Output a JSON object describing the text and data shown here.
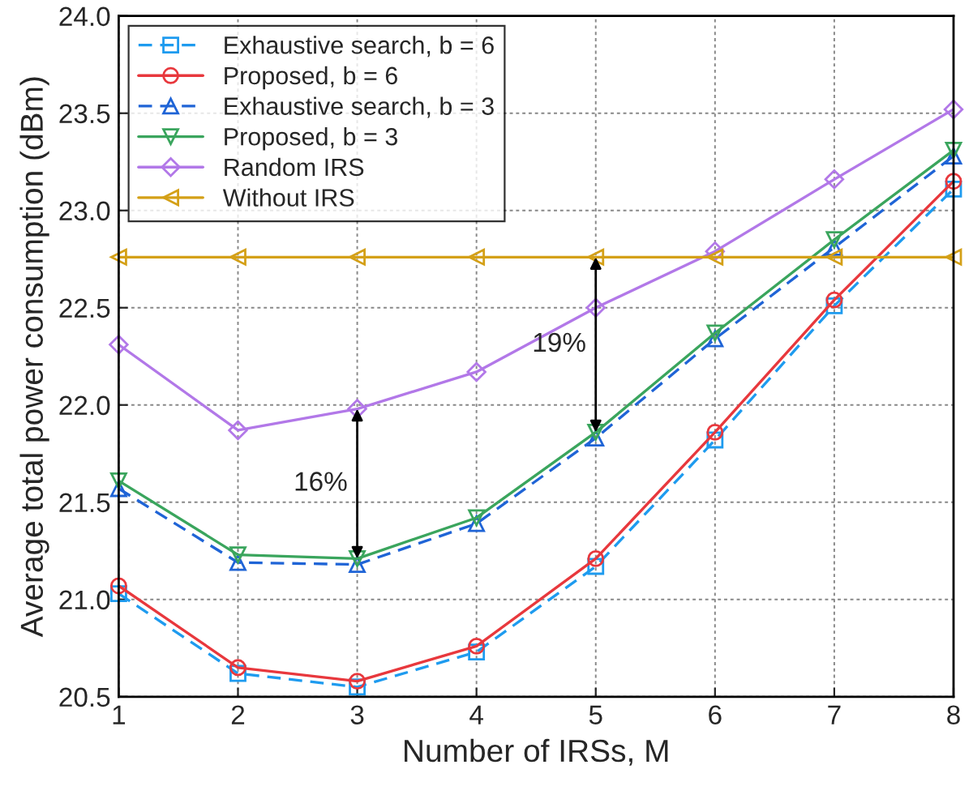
{
  "chart_data": {
    "type": "line",
    "xlabel": "Number of IRSs, M",
    "ylabel": "Average total power consumption (dBm)",
    "x": [
      1,
      2,
      3,
      4,
      5,
      6,
      7,
      8
    ],
    "series": [
      {
        "name": "Exhaustive search, b = 6",
        "color": "#1e9bef",
        "marker": "square",
        "line_style": "dashed",
        "values": [
          21.03,
          20.62,
          20.55,
          20.73,
          21.17,
          21.82,
          22.51,
          23.11
        ]
      },
      {
        "name": "Proposed, b = 6",
        "color": "#e8383d",
        "marker": "circle",
        "line_style": "solid",
        "values": [
          21.07,
          20.65,
          20.58,
          20.76,
          21.21,
          21.86,
          22.54,
          23.15
        ]
      },
      {
        "name": "Exhaustive search, b = 3",
        "color": "#1f64d6",
        "marker": "triangle",
        "line_style": "dashed",
        "values": [
          21.57,
          21.19,
          21.18,
          21.39,
          21.83,
          22.34,
          22.81,
          23.28
        ]
      },
      {
        "name": "Proposed, b = 3",
        "color": "#3aa55d",
        "marker": "triangle_down",
        "line_style": "solid",
        "values": [
          21.61,
          21.23,
          21.21,
          21.42,
          21.86,
          22.37,
          22.85,
          23.31
        ]
      },
      {
        "name": "Random IRS",
        "color": "#b278e8",
        "marker": "diamond",
        "line_style": "solid",
        "values": [
          22.31,
          21.87,
          21.98,
          22.17,
          22.5,
          22.79,
          23.16,
          23.52
        ]
      },
      {
        "name": "Without IRS",
        "color": "#d4a017",
        "marker": "triangle_left",
        "line_style": "solid",
        "values": [
          22.76,
          22.76,
          22.76,
          22.76,
          22.76,
          22.76,
          22.76,
          22.76
        ]
      }
    ],
    "annotations": [
      {
        "text": "16%",
        "x": 3,
        "y": 21.98
      },
      {
        "text": "19%",
        "x": 5,
        "y": 22.76
      }
    ],
    "xlim": [
      1,
      8
    ],
    "xticks": [
      1,
      2,
      3,
      4,
      5,
      6,
      7,
      8
    ],
    "ylim": [
      20.5,
      24.0
    ],
    "yticks": [
      {
        "value": 20.5,
        "label": "20.5"
      },
      {
        "value": 21.0,
        "label": "21.0"
      },
      {
        "value": 21.5,
        "label": "21.5"
      },
      {
        "value": 22.0,
        "label": "22.0"
      },
      {
        "value": 22.5,
        "label": "22.5"
      },
      {
        "value": 23.0,
        "label": "23.0"
      },
      {
        "value": 23.5,
        "label": "23.5"
      },
      {
        "value": 24.0,
        "label": "24.0"
      }
    ],
    "grid": true,
    "legend": "top left"
  }
}
